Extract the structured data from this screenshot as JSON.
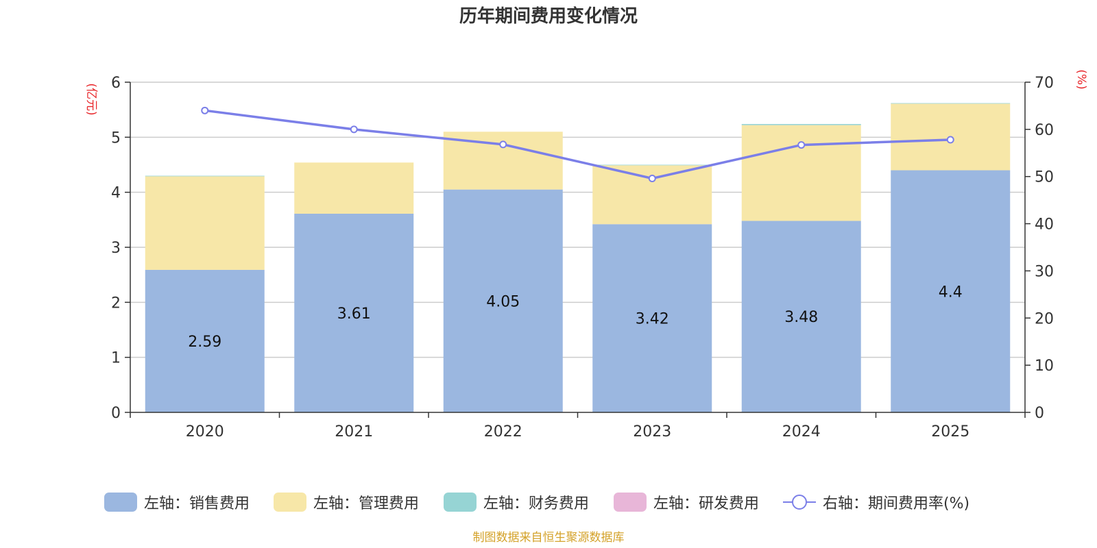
{
  "chart_data": {
    "type": "bar",
    "stacked": true,
    "title": "历年期间费用变化情况",
    "categories": [
      "2020",
      "2021",
      "2022",
      "2023",
      "2024",
      "2025"
    ],
    "y_left": {
      "label": "(亿元)",
      "min": 0,
      "max": 6,
      "ticks": [
        "0",
        "1",
        "2",
        "3",
        "4",
        "5",
        "6"
      ]
    },
    "y_right": {
      "label": "(%)",
      "min": 0,
      "max": 70,
      "ticks": [
        "0",
        "10",
        "20",
        "30",
        "40",
        "50",
        "60",
        "70"
      ]
    },
    "series": [
      {
        "name": "左轴：销售费用",
        "axis": "left",
        "kind": "bar",
        "color": "#9bb7e0",
        "values": [
          2.59,
          3.61,
          4.05,
          3.42,
          3.48,
          4.4
        ],
        "labels": [
          "2.59",
          "3.61",
          "4.05",
          "3.42",
          "3.48",
          "4.4"
        ]
      },
      {
        "name": "左轴：管理费用",
        "axis": "left",
        "kind": "bar",
        "color": "#f7e7a8",
        "values": [
          1.7,
          0.93,
          1.05,
          1.07,
          1.74,
          1.21
        ]
      },
      {
        "name": "左轴：财务费用",
        "axis": "left",
        "kind": "bar",
        "color": "#96d4d4",
        "values": [
          0.01,
          0.0,
          0.0,
          0.01,
          0.02,
          0.01
        ]
      },
      {
        "name": "左轴：研发费用",
        "axis": "left",
        "kind": "bar",
        "color": "#e8b6d8",
        "values": [
          0,
          0,
          0,
          0,
          0,
          0
        ]
      },
      {
        "name": "右轴：期间费用率(%)",
        "axis": "right",
        "kind": "line",
        "color": "#7b7fe8",
        "values": [
          64.0,
          60.0,
          56.8,
          49.6,
          56.7,
          57.8
        ]
      }
    ],
    "grid": true,
    "legend_position": "bottom"
  },
  "source": {
    "text": "制图数据来自恒生聚源数据库",
    "color": "#d4a22a"
  },
  "colors": {
    "axis_label": "#e8262a",
    "axis_line": "#333333",
    "grid_line": "#cccccc"
  }
}
